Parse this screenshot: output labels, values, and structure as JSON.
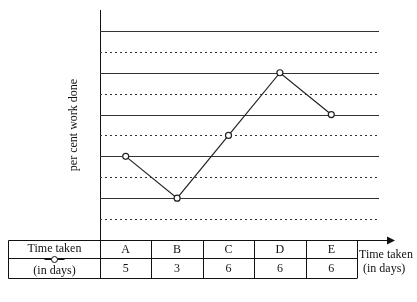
{
  "chart_data": {
    "type": "line",
    "y_label": "per cent work done",
    "x_label": [
      "Time taken",
      "(in days)"
    ],
    "categories": [
      "A",
      "B",
      "C",
      "D",
      "E"
    ],
    "values": [
      40,
      20,
      50,
      80,
      60
    ],
    "color": "#222222",
    "marker": "circle",
    "ylim": [
      0,
      110
    ],
    "yticks": [
      0,
      10,
      20,
      30,
      40,
      50,
      60,
      70,
      80,
      90,
      100
    ],
    "grid": true,
    "tick_labels": false,
    "table": {
      "header": [
        "Time taken",
        "(in days)"
      ],
      "values": [
        5,
        3,
        6,
        6,
        6
      ]
    }
  }
}
